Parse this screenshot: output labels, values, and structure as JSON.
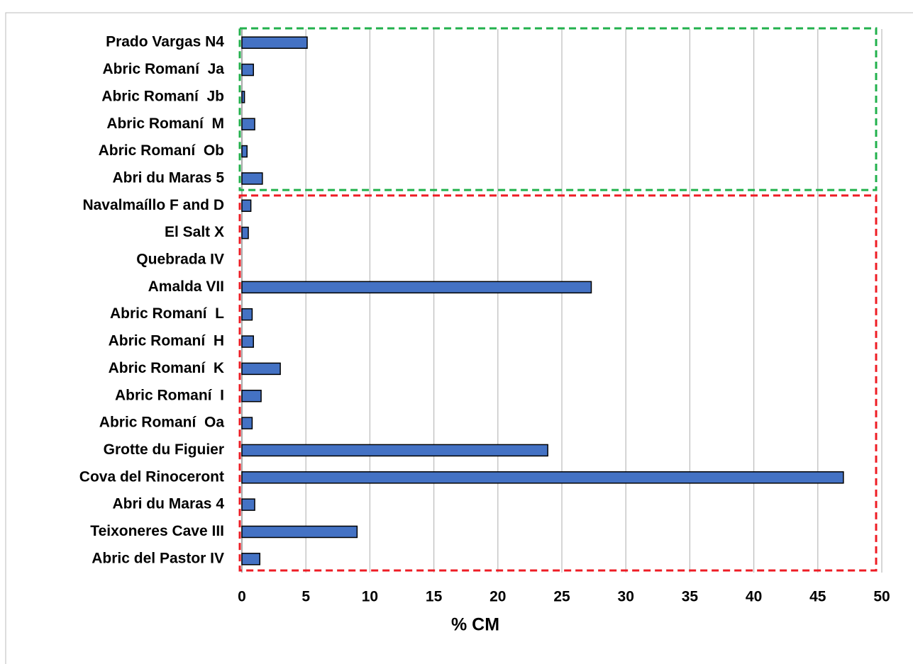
{
  "chart_data": {
    "type": "barh",
    "xlabel": "% CM",
    "categories": [
      "Prado Vargas N4",
      "Abric Romaní  Ja",
      "Abric Romaní  Jb",
      "Abric Romaní  M",
      "Abric Romaní  Ob",
      "Abri du Maras 5",
      "Navalmaíllo F and D",
      "El Salt X",
      "Quebrada IV",
      "Amalda VII",
      "Abric Romaní  L",
      "Abric Romaní  H",
      "Abric Romaní  K",
      "Abric Romaní  I",
      "Abric Romaní  Oa",
      "Grotte du Figuier",
      "Cova del Rinoceront",
      "Abri du Maras 4",
      "Teixoneres Cave III",
      "Abric del Pastor IV"
    ],
    "values": [
      5.1,
      0.9,
      0.2,
      1.0,
      0.4,
      1.6,
      0.7,
      0.5,
      0,
      27.3,
      0.8,
      0.9,
      3.0,
      1.5,
      0.8,
      23.9,
      47.0,
      1.0,
      9.0,
      1.4
    ],
    "color": "#4472c4",
    "xlim": [
      0,
      50
    ],
    "xticks": [
      0,
      5,
      10,
      15,
      20,
      25,
      30,
      35,
      40,
      45,
      50
    ],
    "grid": true
  }
}
